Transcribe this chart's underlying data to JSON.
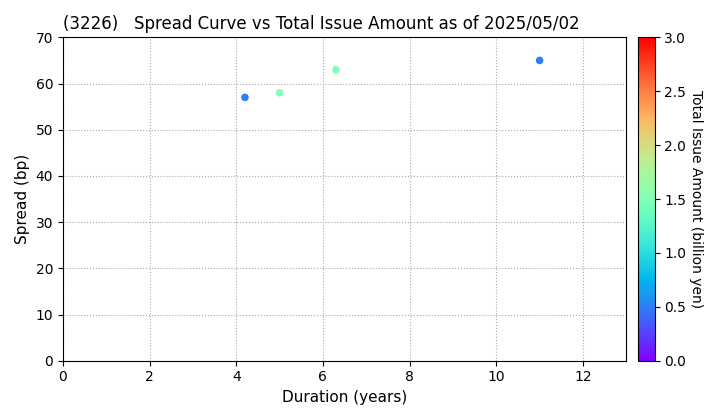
{
  "title": "(3226)   Spread Curve vs Total Issue Amount as of 2025/05/02",
  "xlabel": "Duration (years)",
  "ylabel": "Spread (bp)",
  "colorbar_label": "Total Issue Amount (billion yen)",
  "xlim": [
    0,
    13
  ],
  "ylim": [
    0,
    70
  ],
  "xticks": [
    0,
    2,
    4,
    6,
    8,
    10,
    12
  ],
  "yticks": [
    0,
    10,
    20,
    30,
    40,
    50,
    60,
    70
  ],
  "colorbar_min": 0.0,
  "colorbar_max": 3.0,
  "points": [
    {
      "duration": 4.2,
      "spread": 57,
      "amount": 0.5
    },
    {
      "duration": 5.0,
      "spread": 58,
      "amount": 1.5
    },
    {
      "duration": 6.3,
      "spread": 63,
      "amount": 1.5
    },
    {
      "duration": 11.0,
      "spread": 65,
      "amount": 0.5
    }
  ],
  "background_color": "#ffffff",
  "grid_color": "#aaaaaa",
  "title_fontsize": 12,
  "axis_label_fontsize": 11,
  "tick_fontsize": 10,
  "colorbar_tick_fontsize": 10,
  "marker_size": 30
}
